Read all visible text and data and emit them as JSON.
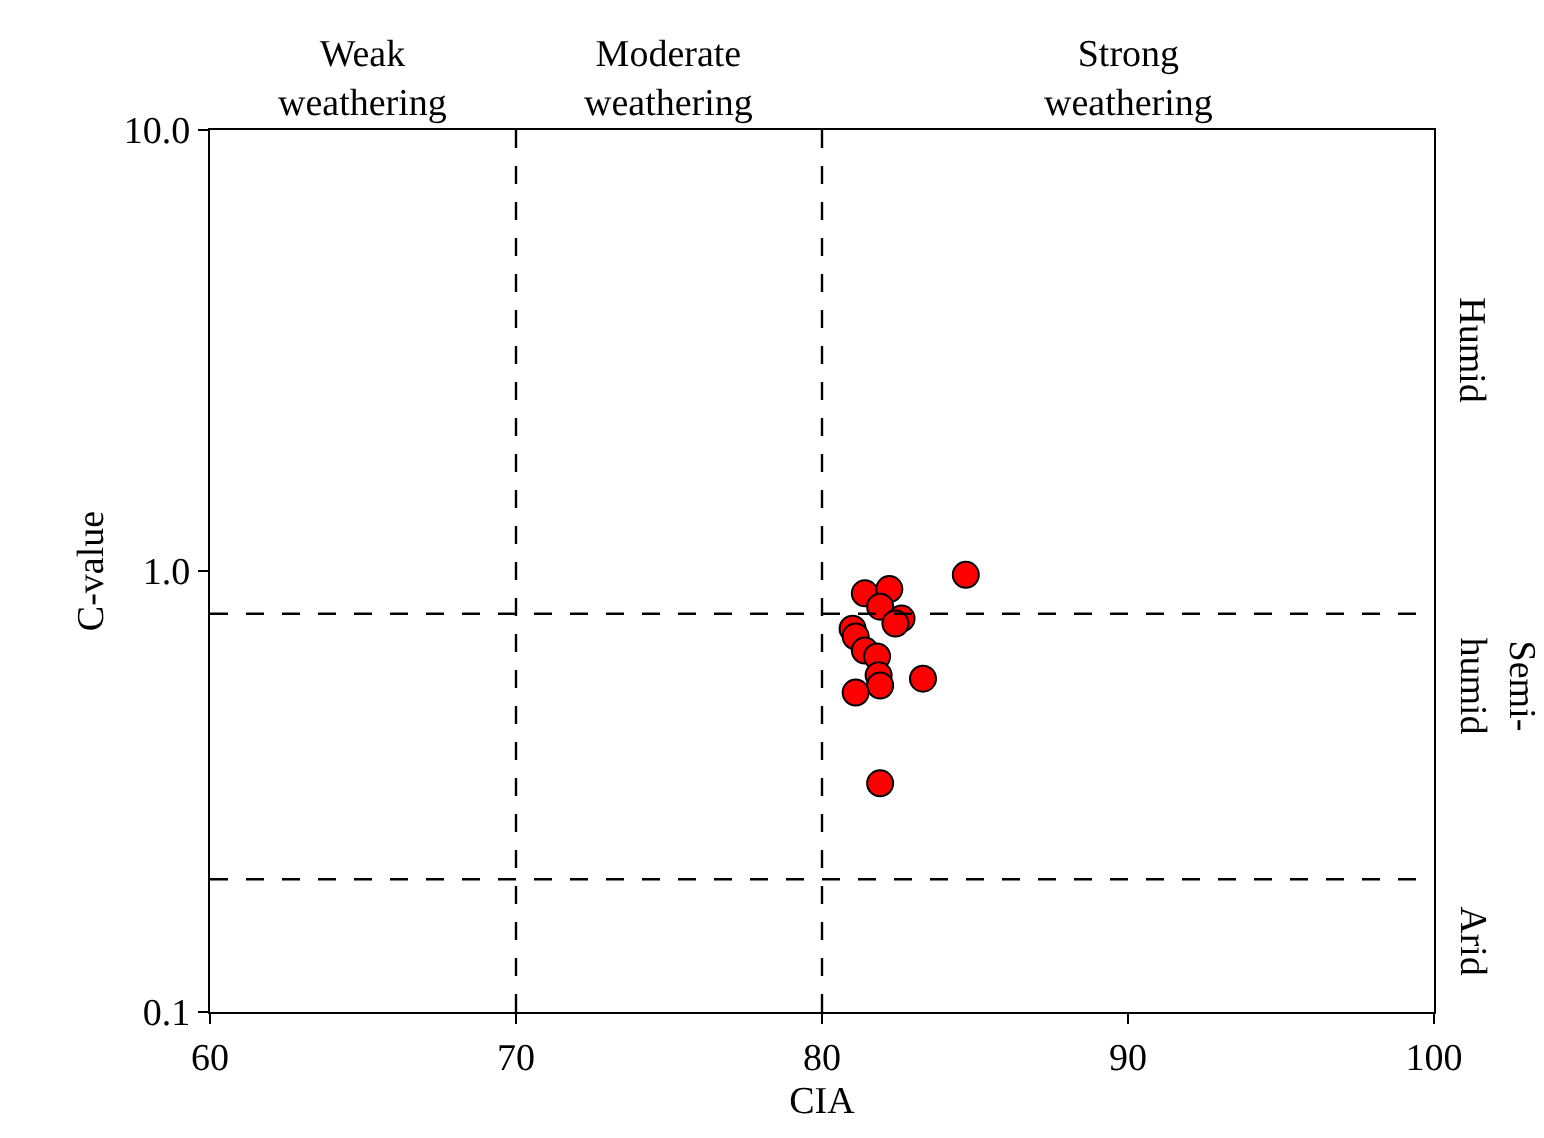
{
  "chart_data": {
    "type": "scatter",
    "xlabel": "CIA",
    "ylabel": "C-value",
    "log": "y",
    "marker": "circle",
    "x": [
      84.7,
      81.4,
      82.2,
      81.9,
      82.6,
      82.4,
      81.0,
      81.1,
      81.4,
      81.8,
      81.85,
      81.9,
      83.3,
      81.1,
      81.9
    ],
    "series": [
      {
        "color": "#ff0000",
        "values": [
          0.98,
          0.89,
          0.91,
          0.83,
          0.78,
          0.76,
          0.74,
          0.71,
          0.66,
          0.64,
          0.58,
          0.55,
          0.57,
          0.53,
          0.33
        ]
      }
    ],
    "xlim": [
      60,
      100
    ],
    "xticks": [
      60,
      70,
      80,
      90,
      100
    ],
    "ylim": [
      0.1,
      10
    ],
    "yticks": [
      {
        "value": 0.1,
        "label": "0.1"
      },
      {
        "value": 1,
        "label": "1.0"
      },
      {
        "value": 10,
        "label": "10.0"
      }
    ],
    "ref_lines": [
      {
        "axis": "x",
        "value": 70,
        "line_style": "dashed"
      },
      {
        "axis": "x",
        "value": 80,
        "line_style": "dashed"
      },
      {
        "axis": "y",
        "value": 0.8,
        "line_style": "dashed"
      },
      {
        "axis": "y",
        "value": 0.2,
        "line_style": "dashed"
      }
    ],
    "annotations": [
      "Weak\nweathering",
      "Moderate\nweathering",
      "Strong\nweathering",
      "Humid",
      "Semi-\nhumid",
      "Arid"
    ]
  }
}
